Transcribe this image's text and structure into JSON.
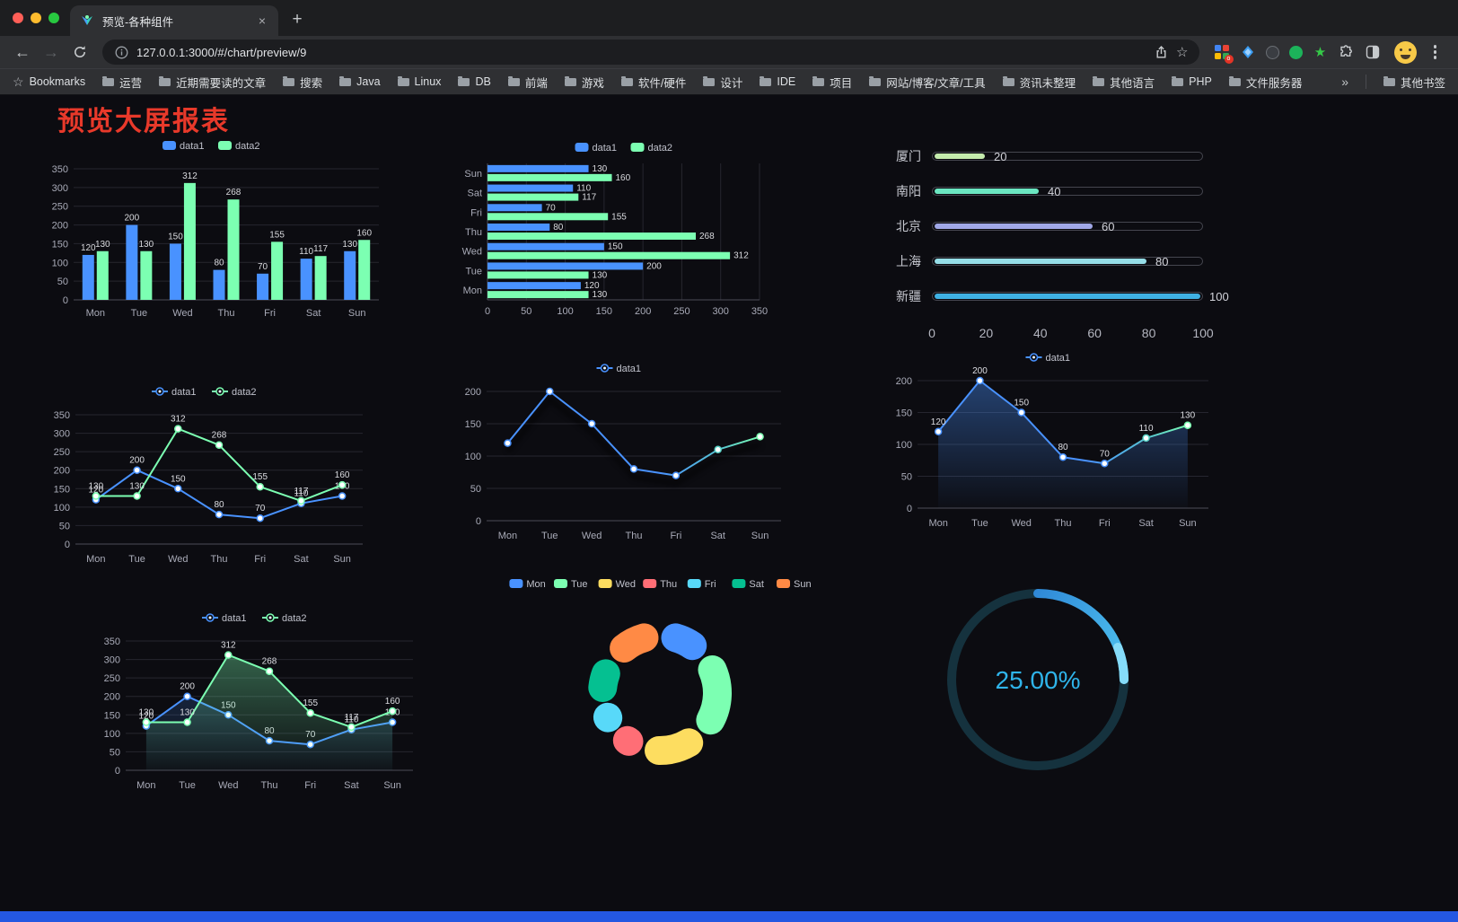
{
  "browser": {
    "tab_title": "预览-各种组件",
    "tab_close_label": "×",
    "new_tab_label": "+",
    "url": "127.0.0.1:3000/#/chart/preview/9",
    "bookmarks_bar": {
      "first_item": "Bookmarks",
      "folders": [
        "运营",
        "近期需要读的文章",
        "搜索",
        "Java",
        "Linux",
        "DB",
        "前端",
        "游戏",
        "软件/硬件",
        "设计",
        "IDE",
        "项目",
        "网站/博客/文章/工具",
        "资讯未整理",
        "其他语言",
        "PHP",
        "文件服务器"
      ],
      "overflow": "»",
      "other_bookmarks": "其他书签"
    }
  },
  "page": {
    "title": "预览大屏报表",
    "title_color": "#e8392a",
    "background": "#0c0c11",
    "footer_color": "#2457e2"
  },
  "chart_data": [
    {
      "id": "bar",
      "type": "bar",
      "legend_position": "top",
      "grid": true,
      "categories": [
        "Mon",
        "Tue",
        "Wed",
        "Thu",
        "Fri",
        "Sat",
        "Sun"
      ],
      "series": [
        {
          "name": "data1",
          "color": "#4992ff",
          "values": [
            120,
            200,
            150,
            80,
            70,
            110,
            130
          ]
        },
        {
          "name": "data2",
          "color": "#7cffb2",
          "values": [
            130,
            130,
            312,
            268,
            155,
            117,
            160
          ]
        }
      ],
      "ylim": [
        0,
        350
      ],
      "yticks": [
        0,
        50,
        100,
        150,
        200,
        250,
        300,
        350
      ],
      "value_labels": true
    },
    {
      "id": "hbar",
      "type": "bar",
      "orientation": "horizontal",
      "legend_position": "top",
      "grid": true,
      "categories": [
        "Mon",
        "Tue",
        "Wed",
        "Thu",
        "Fri",
        "Sat",
        "Sun"
      ],
      "series": [
        {
          "name": "data1",
          "color": "#4992ff",
          "values": [
            120,
            200,
            150,
            80,
            70,
            110,
            130
          ]
        },
        {
          "name": "data2",
          "color": "#7cffb2",
          "values": [
            130,
            130,
            312,
            268,
            155,
            117,
            160
          ]
        }
      ],
      "xlim": [
        0,
        350
      ],
      "xticks": [
        0,
        50,
        100,
        150,
        200,
        250,
        300,
        350
      ],
      "value_labels": true
    },
    {
      "id": "progress",
      "type": "bar",
      "subtype": "progress-list",
      "max": 100,
      "items": [
        {
          "label": "厦门",
          "value": 20,
          "color": "#c4ebad"
        },
        {
          "label": "南阳",
          "value": 40,
          "color": "#6be6c1"
        },
        {
          "label": "北京",
          "value": 60,
          "color": "#a0a7e6"
        },
        {
          "label": "上海",
          "value": 80,
          "color": "#96dee8"
        },
        {
          "label": "新疆",
          "value": 100,
          "color": "#3fb1e3"
        }
      ],
      "xticks": [
        0,
        20,
        40,
        60,
        80,
        100
      ]
    },
    {
      "id": "line2",
      "type": "line",
      "legend_position": "top",
      "point_labels": true,
      "categories": [
        "Mon",
        "Tue",
        "Wed",
        "Thu",
        "Fri",
        "Sat",
        "Sun"
      ],
      "series": [
        {
          "name": "data1",
          "color": "#4992ff",
          "values": [
            120,
            200,
            150,
            80,
            70,
            110,
            130
          ]
        },
        {
          "name": "data2",
          "color": "#7cffb2",
          "values": [
            130,
            130,
            312,
            268,
            155,
            117,
            160
          ]
        }
      ],
      "ylim": [
        0,
        350
      ],
      "yticks": [
        0,
        50,
        100,
        150,
        200,
        250,
        300,
        350
      ]
    },
    {
      "id": "line1",
      "type": "line",
      "legend_position": "top",
      "point_labels": false,
      "categories": [
        "Mon",
        "Tue",
        "Wed",
        "Thu",
        "Fri",
        "Sat",
        "Sun"
      ],
      "series": [
        {
          "name": "data1",
          "color": "#4992ff",
          "values": [
            120,
            200,
            150,
            80,
            70,
            110,
            130
          ],
          "gradient": true,
          "shadow": true,
          "marker_colors": [
            "#4992ff",
            "#4992ff",
            "#4992ff",
            "#4992ff",
            "#4992ff",
            "#56d1c5",
            "#7cffb2"
          ]
        }
      ],
      "ylim": [
        0,
        200
      ],
      "yticks": [
        0,
        50,
        100,
        150,
        200
      ]
    },
    {
      "id": "area1",
      "type": "area",
      "legend_position": "top",
      "point_labels": true,
      "categories": [
        "Mon",
        "Tue",
        "Wed",
        "Thu",
        "Fri",
        "Sat",
        "Sun"
      ],
      "series": [
        {
          "name": "data1",
          "color": "#4992ff",
          "values": [
            120,
            200,
            150,
            80,
            70,
            110,
            130
          ],
          "gradient": true,
          "area": true,
          "area_opacity": 0.4,
          "marker_colors": [
            "#4992ff",
            "#4992ff",
            "#4992ff",
            "#4992ff",
            "#4992ff",
            "#56d1c5",
            "#7cffb2"
          ]
        }
      ],
      "ylim": [
        0,
        200
      ],
      "yticks": [
        0,
        50,
        100,
        150,
        200
      ]
    },
    {
      "id": "area2",
      "type": "area",
      "legend_position": "top",
      "point_labels": true,
      "categories": [
        "Mon",
        "Tue",
        "Wed",
        "Thu",
        "Fri",
        "Sat",
        "Sun"
      ],
      "series": [
        {
          "name": "data1",
          "color": "#4992ff",
          "values": [
            120,
            200,
            150,
            80,
            70,
            110,
            130
          ],
          "area": true,
          "area_opacity": 0.18
        },
        {
          "name": "data2",
          "color": "#7cffb2",
          "values": [
            130,
            130,
            312,
            268,
            155,
            117,
            160
          ],
          "area": true,
          "area_opacity": 0.35
        }
      ],
      "ylim": [
        0,
        350
      ],
      "yticks": [
        0,
        50,
        100,
        150,
        200,
        250,
        300,
        350
      ]
    },
    {
      "id": "pie",
      "type": "pie",
      "shape": "donut",
      "legend_position": "top",
      "labels": [
        "Mon",
        "Tue",
        "Wed",
        "Thu",
        "Fri",
        "Sat",
        "Sun"
      ],
      "values": [
        120,
        200,
        150,
        80,
        70,
        110,
        130
      ],
      "colors": [
        "#4992ff",
        "#7cffb2",
        "#fddd60",
        "#ff6e76",
        "#58d9f9",
        "#05c091",
        "#ff8a45"
      ]
    },
    {
      "id": "gauge",
      "type": "gauge",
      "value": 25,
      "display": "25.00%",
      "progress_color_from": "#1b64c8",
      "progress_color_to": "#4fc3f0",
      "track_color": "#15323e",
      "text_color": "#2fb4ea"
    }
  ]
}
